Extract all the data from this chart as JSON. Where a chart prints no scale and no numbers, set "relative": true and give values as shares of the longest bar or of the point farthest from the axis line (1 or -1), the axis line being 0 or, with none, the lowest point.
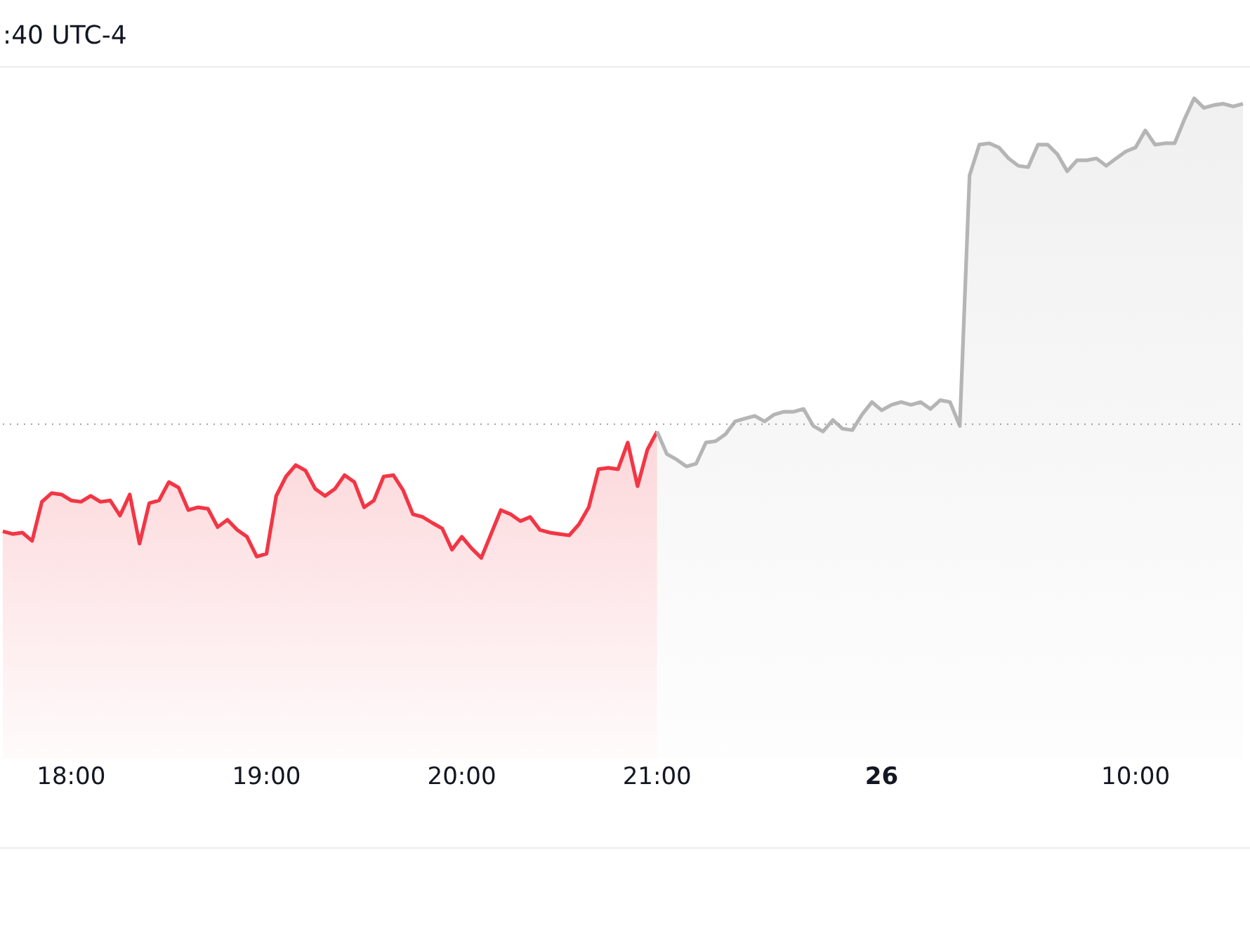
{
  "chart_data": {
    "type": "area",
    "title": ":40 UTC-4",
    "relative": true,
    "categories": [
      null,
      null,
      null,
      null,
      null,
      null,
      null,
      "18:00",
      null,
      null,
      null,
      null,
      null,
      null,
      null,
      null,
      null,
      null,
      null,
      null,
      null,
      null,
      null,
      null,
      null,
      null,
      null,
      "19:00",
      null,
      null,
      null,
      null,
      null,
      null,
      null,
      null,
      null,
      null,
      null,
      null,
      null,
      null,
      null,
      null,
      null,
      null,
      null,
      "20:00",
      null,
      null,
      null,
      null,
      null,
      null,
      null,
      null,
      null,
      null,
      null,
      null,
      null,
      null,
      null,
      null,
      null,
      null,
      null,
      "21:00",
      null,
      null,
      null,
      null,
      null,
      null,
      null,
      null,
      null,
      null,
      null,
      null,
      null,
      null,
      null,
      null,
      null,
      null,
      null,
      null,
      null,
      null,
      "26",
      null,
      null,
      null,
      null,
      null,
      null,
      null,
      null,
      null,
      null,
      null,
      null,
      null,
      null,
      null,
      null,
      null,
      null,
      null,
      null,
      null,
      null,
      null,
      null,
      null,
      "10:00",
      null,
      null,
      null,
      null,
      null,
      null,
      null,
      null,
      null,
      null,
      null
    ],
    "series": [
      {
        "color": "#f23645",
        "values": [
          0.058,
          0.052,
          0.055,
          0.037,
          0.122,
          0.141,
          0.138,
          0.125,
          0.122,
          0.135,
          0.122,
          0.125,
          0.092,
          0.138,
          0.031,
          0.119,
          0.125,
          0.165,
          0.153,
          0.104,
          0.11,
          0.107,
          0.067,
          0.083,
          0.061,
          0.046,
          0.003,
          0.009,
          0.135,
          0.177,
          0.202,
          0.19,
          0.15,
          0.135,
          0.15,
          0.18,
          0.165,
          0.11,
          0.125,
          0.177,
          0.18,
          0.147,
          0.095,
          0.089,
          0.076,
          0.064,
          0.018,
          0.046,
          0.021,
          0,
          0.052,
          0.104,
          0.095,
          0.08,
          0.089,
          0.061,
          0.055,
          0.052,
          0.049,
          0.073,
          0.11,
          0.193,
          0.196,
          0.193,
          0.251,
          0.156,
          0.235,
          0.275,
          null,
          null,
          null,
          null,
          null,
          null,
          null,
          null,
          null,
          null,
          null,
          null,
          null,
          null,
          null,
          null,
          null,
          null,
          null,
          null,
          null,
          null,
          null,
          null,
          null,
          null,
          null,
          null,
          null,
          null,
          null,
          null,
          null,
          null,
          null,
          null,
          null,
          null,
          null,
          null,
          null,
          null,
          null,
          null,
          null,
          null,
          null,
          null,
          null,
          null,
          null,
          null,
          null,
          null,
          null,
          null,
          null,
          null,
          null,
          null
        ]
      },
      {
        "color": "#b5b5b5",
        "values": [
          null,
          null,
          null,
          null,
          null,
          null,
          null,
          null,
          null,
          null,
          null,
          null,
          null,
          null,
          null,
          null,
          null,
          null,
          null,
          null,
          null,
          null,
          null,
          null,
          null,
          null,
          null,
          null,
          null,
          null,
          null,
          null,
          null,
          null,
          null,
          null,
          null,
          null,
          null,
          null,
          null,
          null,
          null,
          null,
          null,
          null,
          null,
          null,
          null,
          null,
          null,
          null,
          null,
          null,
          null,
          null,
          null,
          null,
          null,
          null,
          null,
          null,
          null,
          null,
          null,
          null,
          null,
          0.275,
          0.226,
          0.214,
          0.199,
          0.205,
          0.251,
          0.254,
          0.269,
          0.297,
          0.303,
          0.309,
          0.297,
          0.312,
          0.318,
          0.318,
          0.324,
          0.287,
          0.275,
          0.3,
          0.281,
          0.278,
          0.312,
          0.339,
          0.321,
          0.333,
          0.339,
          0.333,
          0.339,
          0.324,
          0.343,
          0.339,
          0.287,
          0.832,
          0.899,
          0.902,
          0.893,
          0.869,
          0.853,
          0.85,
          0.899,
          0.899,
          0.878,
          0.841,
          0.865,
          0.865,
          0.869,
          0.853,
          0.869,
          0.884,
          0.893,
          0.93,
          0.899,
          0.902,
          0.902,
          0.954,
          1,
          0.979,
          0.985,
          0.988,
          0.982,
          0.988
        ]
      }
    ],
    "ref_lines": [
      {
        "axis": "y",
        "value": 0.291,
        "color": "#9e9e9e",
        "line_style": "dotted"
      }
    ]
  }
}
